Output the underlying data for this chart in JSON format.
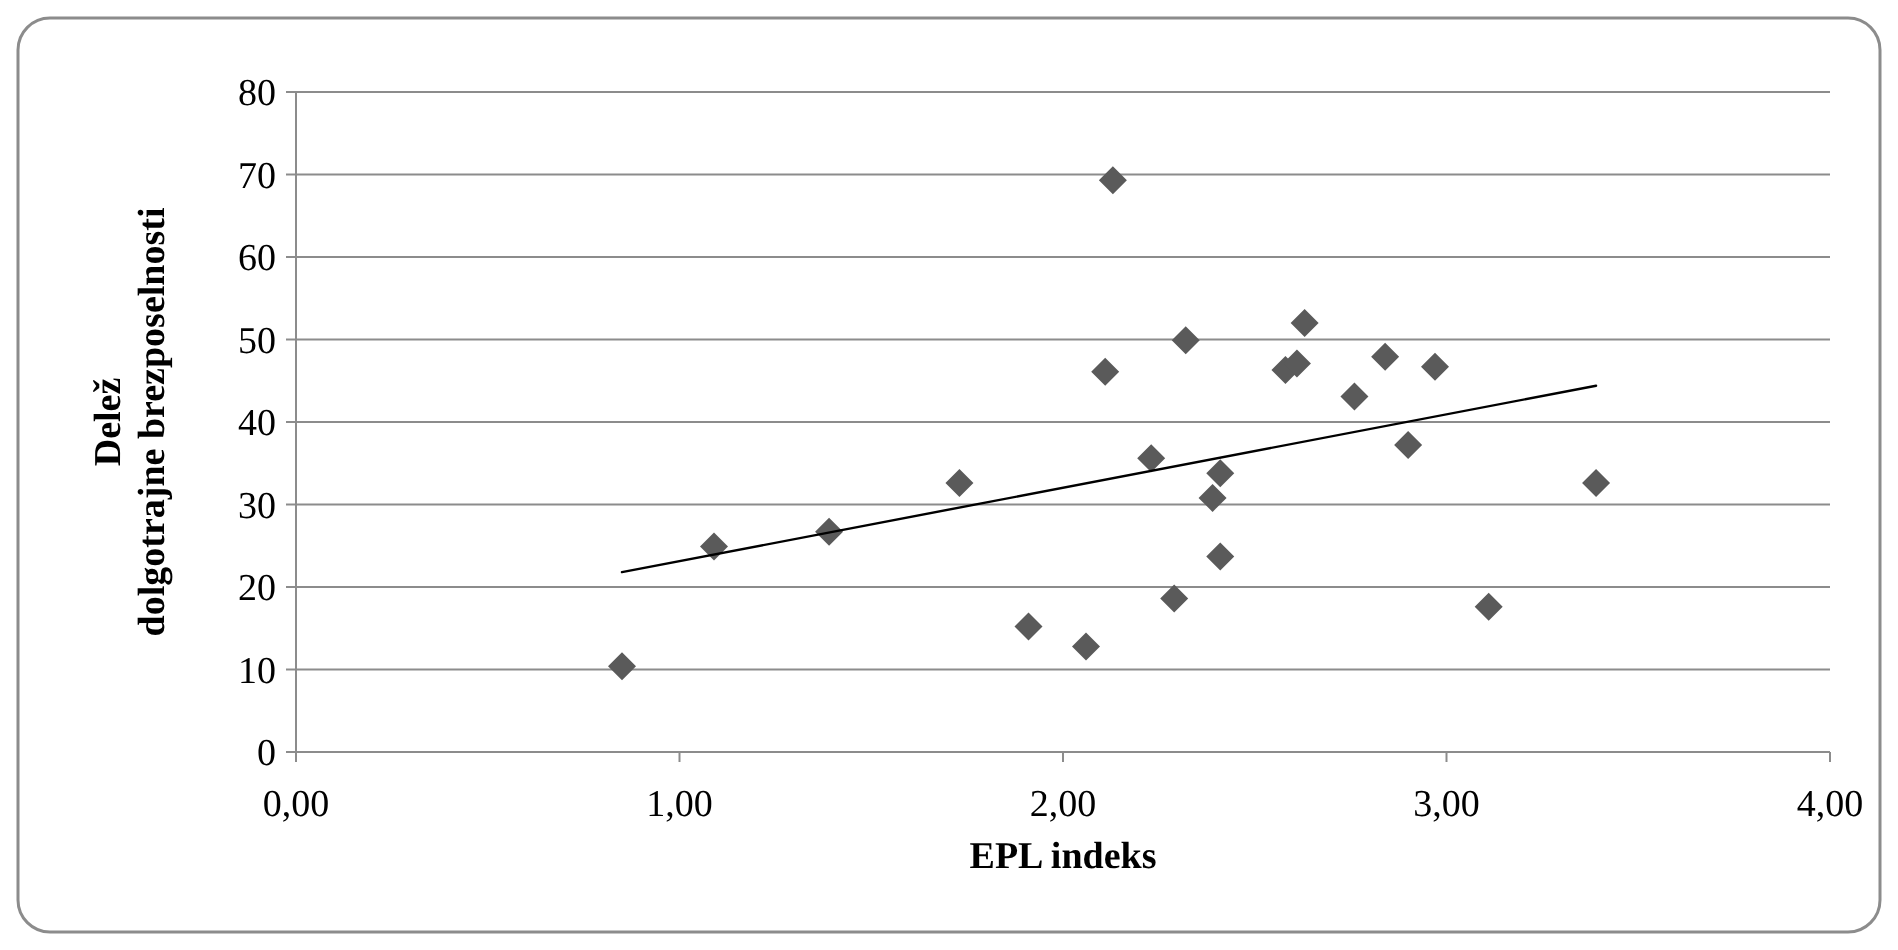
{
  "chart_data": {
    "type": "scatter",
    "xlabel": "EPL indeks",
    "ylabel": "Delež dolgotrajne brezposelnosti",
    "xlim": [
      0,
      4
    ],
    "xticks": [
      {
        "value": 0,
        "label": "0,00"
      },
      {
        "value": 1,
        "label": "1,00"
      },
      {
        "value": 2,
        "label": "2,00"
      },
      {
        "value": 3,
        "label": "3,00"
      },
      {
        "value": 4,
        "label": "4,00"
      }
    ],
    "ylim": [
      0,
      80
    ],
    "yticks": [
      0,
      10,
      20,
      30,
      40,
      50,
      60,
      70,
      80
    ],
    "grid": "y",
    "marker": "diamond",
    "series": [
      {
        "type": "scatter",
        "color": "#5a5a5a",
        "x": [
          0.85,
          1.09,
          1.39,
          1.73,
          1.91,
          2.06,
          2.13,
          2.11,
          2.32,
          2.23,
          2.41,
          2.39,
          2.41,
          2.29,
          2.58,
          2.61,
          2.63,
          2.76,
          2.84,
          2.97,
          2.9,
          3.11,
          3.39
        ],
        "values": [
          10.4,
          24.9,
          26.7,
          32.6,
          15.2,
          12.8,
          69.3,
          46.1,
          49.9,
          35.6,
          33.8,
          30.8,
          23.7,
          18.6,
          46.3,
          47.1,
          52,
          43.1,
          47.9,
          46.7,
          37.2,
          17.6,
          32.6
        ]
      },
      {
        "type": "line",
        "color": "#000000",
        "marker": "none",
        "x": [
          0.85,
          3.39
        ],
        "values": [
          21.8,
          44.4
        ]
      }
    ]
  }
}
